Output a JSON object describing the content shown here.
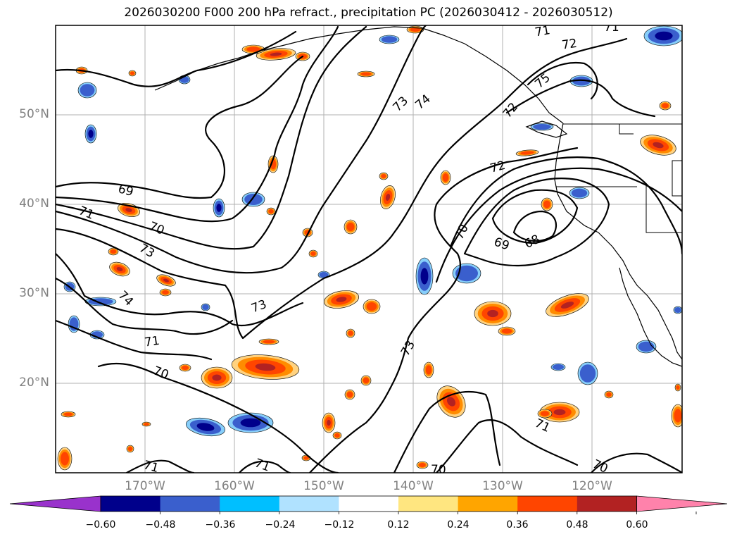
{
  "title": "2026030200 F000 200 hPa refract., precipitation PC (2026030412 - 2026030512)",
  "lat_labels": [
    "50°N",
    "40°N",
    "30°N",
    "20°N"
  ],
  "lon_labels": [
    "170°W",
    "160°W",
    "150°W",
    "140°W",
    "130°W",
    "120°W"
  ],
  "contour_labels": [
    "71",
    "71",
    "72",
    "75",
    "73",
    "74",
    "72",
    "69",
    "71",
    "70",
    "73",
    "74",
    "72",
    "70",
    "69",
    "68",
    "73",
    "71",
    "70",
    "73",
    "71",
    "70",
    "71",
    "71",
    "70"
  ],
  "colorbar": {
    "ticks": [
      "−0.60",
      "−0.48",
      "−0.36",
      "−0.24",
      "−0.12",
      "0.12",
      "0.24",
      "0.36",
      "0.48",
      "0.60"
    ],
    "colors": [
      "#9932cc",
      "#00008b",
      "#3a5fcd",
      "#00bfff",
      "#b0e2ff",
      "#ffffff",
      "#ffe680",
      "#ffa500",
      "#ff4500",
      "#b22222",
      "#ff82ab"
    ]
  },
  "patch_colors": {
    "pos_outer": "#ffd27f",
    "pos_mid": "#ff8c00",
    "pos_inner": "#ff4500",
    "pos_core": "#b22222",
    "neg_outer": "#87cefa",
    "neg_mid": "#3a5fcd",
    "neg_core": "#00008b"
  }
}
